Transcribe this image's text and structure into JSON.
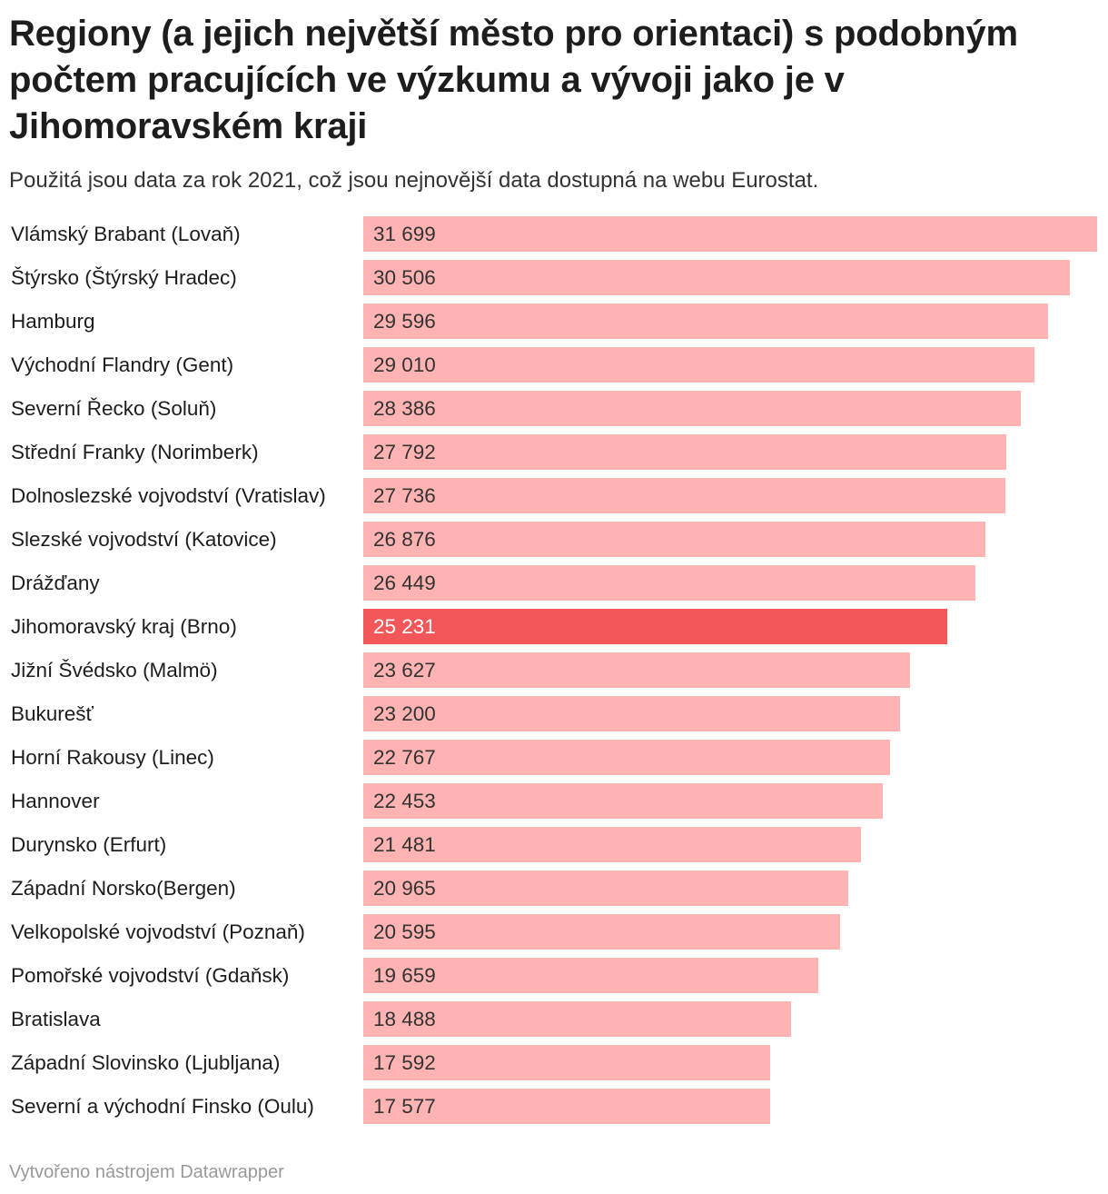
{
  "chart_data": {
    "type": "bar",
    "orientation": "horizontal",
    "title": "Regiony (a jejich největší město pro orientaci) s podobným počtem pracujících ve výzkumu a vývoji jako je v Jihomoravském kraji",
    "subtitle": "Použitá jsou data za rok 2021, což jsou nejnovější data dostupná na webu Eurostat.",
    "categories": [
      "Vlámský Brabant (Lovaň)",
      "Štýrsko (Štýrský Hradec)",
      "Hamburg",
      "Východní Flandry (Gent)",
      "Severní Řecko (Soluň)",
      "Střední Franky (Norimberk)",
      "Dolnoslezské vojvodství (Vratislav)",
      "Slezské vojvodství (Katovice)",
      "Drážďany",
      "Jihomoravský kraj (Brno)",
      "Jižní Švédsko (Malmö)",
      "Bukurešť",
      "Horní Rakousy (Linec)",
      "Hannover",
      "Durynsko (Erfurt)",
      "Západní Norsko(Bergen)",
      "Velkopolské vojvodství (Poznaň)",
      "Pomořské vojvodství (Gdaňsk)",
      "Bratislava",
      "Západní Slovinsko (Ljubljana)",
      "Severní a východní Finsko (Oulu)"
    ],
    "values": [
      31699,
      30506,
      29596,
      29010,
      28386,
      27792,
      27736,
      26876,
      26449,
      25231,
      23627,
      23200,
      22767,
      22453,
      21481,
      20965,
      20595,
      19659,
      18488,
      17592,
      17577
    ],
    "value_labels": [
      "31 699",
      "30 506",
      "29 596",
      "29 010",
      "28 386",
      "27 792",
      "27 736",
      "26 876",
      "26 449",
      "25 231",
      "23 627",
      "23 200",
      "22 767",
      "22 453",
      "21 481",
      "20 965",
      "20 595",
      "19 659",
      "18 488",
      "17 592",
      "17 577"
    ],
    "highlight_index": 9,
    "xlim": [
      0,
      31699
    ],
    "grid": false,
    "legend": "none",
    "colors": {
      "bar": "#ffb3b3",
      "highlight": "#f4575a"
    }
  },
  "footer": {
    "credit": "Vytvořeno nástrojem Datawrapper"
  }
}
